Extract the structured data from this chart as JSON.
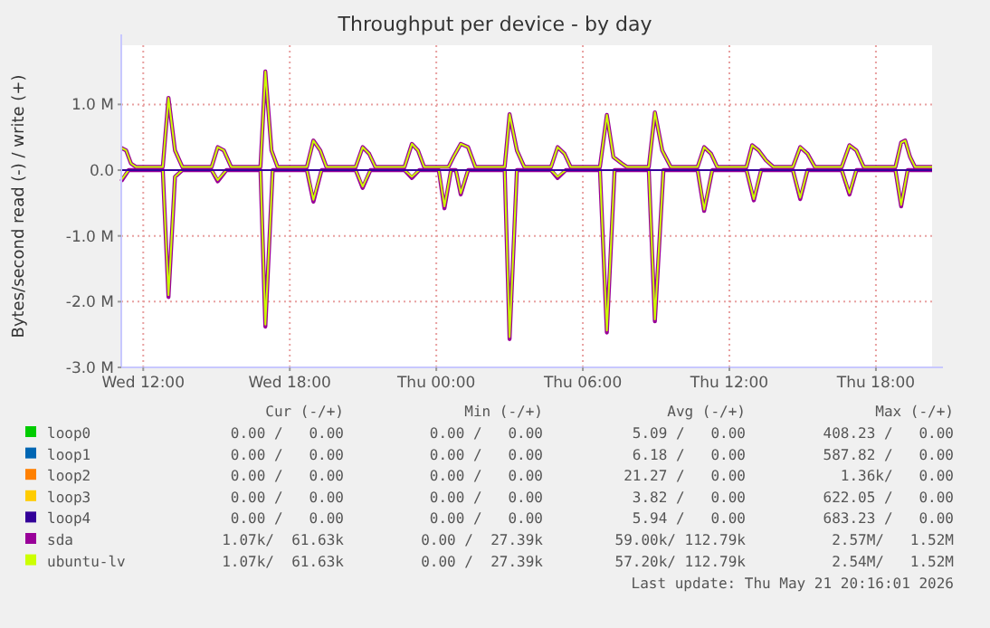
{
  "chart_data": {
    "type": "line",
    "title": "Throughput per device - by day",
    "ylabel": "Bytes/second read (-) / write (+)",
    "xlim": [
      "2026-05-20T11:06",
      "2026-05-21T20:18"
    ],
    "xticks": [
      {
        "value": "2026-05-20T12:00",
        "label": "Wed 12:00"
      },
      {
        "value": "2026-05-20T18:00",
        "label": "Wed 18:00"
      },
      {
        "value": "2026-05-21T00:00",
        "label": "Thu 00:00"
      },
      {
        "value": "2026-05-21T06:00",
        "label": "Thu 06:00"
      },
      {
        "value": "2026-05-21T12:00",
        "label": "Thu 12:00"
      },
      {
        "value": "2026-05-21T18:00",
        "label": "Thu 18:00"
      }
    ],
    "ylim": [
      -3.0,
      1.9
    ],
    "yticks": [
      {
        "value": 1,
        "label": "1.0 M"
      },
      {
        "value": 0,
        "label": "0.0"
      },
      {
        "value": -1,
        "label": "-1.0 M"
      },
      {
        "value": -2,
        "label": "-2.0 M"
      },
      {
        "value": -3,
        "label": "-3.0 M"
      }
    ],
    "grid": true,
    "legend": "bottom",
    "x": [
      "2026-05-20T11:06",
      "2026-05-20T11:18",
      "2026-05-20T11:30",
      "2026-05-20T11:42",
      "2026-05-20T12:48",
      "2026-05-20T13:02",
      "2026-05-20T13:18",
      "2026-05-20T13:36",
      "2026-05-20T14:48",
      "2026-05-20T15:03",
      "2026-05-20T15:18",
      "2026-05-20T15:36",
      "2026-05-20T16:48",
      "2026-05-20T17:00",
      "2026-05-20T17:15",
      "2026-05-20T17:30",
      "2026-05-20T18:42",
      "2026-05-20T18:58",
      "2026-05-20T19:15",
      "2026-05-20T19:30",
      "2026-05-20T20:42",
      "2026-05-20T20:59",
      "2026-05-20T21:15",
      "2026-05-20T21:30",
      "2026-05-20T22:42",
      "2026-05-20T23:00",
      "2026-05-20T23:15",
      "2026-05-20T23:30",
      "2026-05-21T00:30",
      "2026-05-21T00:42",
      "2026-05-21T01:00",
      "2026-05-21T01:18",
      "2026-05-21T01:36",
      "2026-05-21T02:48",
      "2026-05-21T03:00",
      "2026-05-21T03:18",
      "2026-05-21T03:36",
      "2026-05-21T04:42",
      "2026-05-21T04:58",
      "2026-05-21T05:15",
      "2026-05-21T05:30",
      "2026-05-21T06:42",
      "2026-05-21T06:59",
      "2026-05-21T07:15",
      "2026-05-21T07:36",
      "2026-05-21T07:48",
      "2026-05-21T08:42",
      "2026-05-21T08:57",
      "2026-05-21T09:15",
      "2026-05-21T09:36",
      "2026-05-21T10:42",
      "2026-05-21T10:58",
      "2026-05-21T11:15",
      "2026-05-21T11:30",
      "2026-05-21T12:42",
      "2026-05-21T12:56",
      "2026-05-21T13:12",
      "2026-05-21T13:30",
      "2026-05-21T13:48",
      "2026-05-21T14:36",
      "2026-05-21T14:54",
      "2026-05-21T15:12",
      "2026-05-21T15:30",
      "2026-05-21T16:36",
      "2026-05-21T16:55",
      "2026-05-21T17:12",
      "2026-05-21T17:30",
      "2026-05-21T18:48",
      "2026-05-21T19:02",
      "2026-05-21T19:12",
      "2026-05-21T19:24",
      "2026-05-21T19:36",
      "2026-05-21T20:18"
    ],
    "series": [
      {
        "name": "loop0",
        "color": "#00cc00",
        "values": [
          null,
          null,
          null,
          null,
          null,
          null,
          null,
          null,
          null,
          null,
          null,
          null,
          null,
          null,
          null,
          null,
          null,
          null,
          null,
          null,
          null,
          null,
          null,
          null,
          null,
          null,
          null,
          null,
          null,
          null,
          null,
          null,
          null,
          null,
          null,
          null,
          null,
          null,
          null,
          null,
          null,
          null,
          null,
          null,
          null,
          null,
          null,
          null,
          null,
          null,
          null,
          null,
          null,
          null,
          null,
          null,
          null,
          null,
          null,
          null,
          null,
          null,
          null,
          null,
          null,
          null,
          null,
          null,
          null,
          null,
          null,
          null,
          null
        ]
      },
      {
        "name": "loop1",
        "color": "#0066b3",
        "values": [
          null,
          null,
          null,
          null,
          null,
          null,
          null,
          null,
          null,
          null,
          null,
          null,
          null,
          null,
          null,
          null,
          null,
          null,
          null,
          null,
          null,
          null,
          null,
          null,
          null,
          null,
          null,
          null,
          null,
          null,
          null,
          null,
          null,
          null,
          null,
          null,
          null,
          null,
          null,
          null,
          null,
          null,
          null,
          null,
          null,
          null,
          null,
          null,
          null,
          null,
          null,
          null,
          null,
          null,
          null,
          null,
          null,
          null,
          null,
          null,
          null,
          null,
          null,
          null,
          null,
          null,
          null,
          null,
          null,
          null,
          null,
          null,
          null
        ]
      },
      {
        "name": "loop2",
        "color": "#ff8000",
        "values": [
          null,
          null,
          null,
          null,
          null,
          null,
          null,
          null,
          null,
          null,
          null,
          null,
          null,
          null,
          null,
          null,
          null,
          null,
          null,
          null,
          null,
          null,
          null,
          null,
          null,
          null,
          null,
          null,
          null,
          null,
          null,
          null,
          null,
          null,
          null,
          null,
          null,
          null,
          null,
          null,
          null,
          null,
          null,
          null,
          null,
          null,
          null,
          null,
          null,
          null,
          null,
          null,
          null,
          null,
          null,
          null,
          null,
          null,
          null,
          null,
          null,
          null,
          null,
          null,
          null,
          null,
          null,
          null,
          null,
          null,
          null,
          null,
          null
        ]
      },
      {
        "name": "loop3",
        "color": "#ffcc00",
        "values": [
          null,
          null,
          null,
          null,
          null,
          null,
          null,
          null,
          null,
          null,
          null,
          null,
          null,
          null,
          null,
          null,
          null,
          null,
          null,
          null,
          null,
          null,
          null,
          null,
          null,
          null,
          null,
          null,
          null,
          null,
          null,
          null,
          null,
          null,
          null,
          null,
          null,
          null,
          null,
          null,
          null,
          null,
          null,
          null,
          null,
          null,
          null,
          null,
          null,
          null,
          null,
          null,
          null,
          null,
          null,
          null,
          null,
          null,
          null,
          null,
          null,
          null,
          null,
          null,
          null,
          null,
          null,
          null,
          null,
          null,
          null,
          null,
          null
        ]
      },
      {
        "name": "loop4",
        "color": "#330099",
        "x": [
          "2026-05-20T11:06",
          "2026-05-21T20:18"
        ],
        "values": [
          0,
          0
        ]
      },
      {
        "name": "sda",
        "color": "#990099",
        "values": [
          0.34,
          0.3,
          0.1,
          0.05,
          0.05,
          1.1,
          0.3,
          0.05,
          0.05,
          0.35,
          0.3,
          0.05,
          0.05,
          1.5,
          0.3,
          0.05,
          0.05,
          0.45,
          0.3,
          0.05,
          0.05,
          0.35,
          0.25,
          0.05,
          0.05,
          0.4,
          0.3,
          0.05,
          0.05,
          0.2,
          0.4,
          0.35,
          0.05,
          0.05,
          0.85,
          0.3,
          0.05,
          0.05,
          0.35,
          0.25,
          0.05,
          0.05,
          0.84,
          0.2,
          0.1,
          0.05,
          0.05,
          0.88,
          0.3,
          0.05,
          0.05,
          0.35,
          0.25,
          0.05,
          0.05,
          0.38,
          0.3,
          0.15,
          0.05,
          0.05,
          0.35,
          0.25,
          0.05,
          0.05,
          0.38,
          0.3,
          0.05,
          0.05,
          0.42,
          0.45,
          0.2,
          0.05,
          0.05
        ]
      },
      {
        "color": "#990099",
        "x": [
          "2026-05-20T11:06",
          "2026-05-20T11:24",
          "2026-05-20T12:48",
          "2026-05-20T13:02",
          "2026-05-20T13:18",
          "2026-05-20T13:36",
          "2026-05-20T14:48",
          "2026-05-20T15:03",
          "2026-05-20T15:24",
          "2026-05-20T16:48",
          "2026-05-20T17:00",
          "2026-05-20T17:18",
          "2026-05-20T18:42",
          "2026-05-20T18:58",
          "2026-05-20T19:18",
          "2026-05-20T20:42",
          "2026-05-20T20:59",
          "2026-05-20T21:18",
          "2026-05-20T22:42",
          "2026-05-20T23:00",
          "2026-05-20T23:18",
          "2026-05-21T00:06",
          "2026-05-21T00:20",
          "2026-05-21T00:36",
          "2026-05-21T00:48",
          "2026-05-21T01:00",
          "2026-05-21T01:18",
          "2026-05-21T02:48",
          "2026-05-21T03:00",
          "2026-05-21T03:18",
          "2026-05-21T04:42",
          "2026-05-21T04:58",
          "2026-05-21T05:18",
          "2026-05-21T06:42",
          "2026-05-21T06:59",
          "2026-05-21T07:18",
          "2026-05-21T08:42",
          "2026-05-21T08:57",
          "2026-05-21T09:18",
          "2026-05-21T10:42",
          "2026-05-21T10:58",
          "2026-05-21T11:18",
          "2026-05-21T12:42",
          "2026-05-21T13:00",
          "2026-05-21T13:18",
          "2026-05-21T14:36",
          "2026-05-21T14:54",
          "2026-05-21T15:12",
          "2026-05-21T16:36",
          "2026-05-21T16:55",
          "2026-05-21T17:12",
          "2026-05-21T18:48",
          "2026-05-21T19:02",
          "2026-05-21T19:18",
          "2026-05-21T20:18"
        ],
        "values": [
          -0.17,
          0,
          0,
          -1.93,
          -0.1,
          0,
          0,
          -0.17,
          0,
          0,
          -2.38,
          0,
          0,
          -0.48,
          0,
          0,
          -0.27,
          0,
          0,
          -0.12,
          0,
          0,
          -0.58,
          0,
          0,
          -0.37,
          0,
          0,
          -2.57,
          0,
          0,
          -0.12,
          0,
          0,
          -2.47,
          0,
          0,
          -2.3,
          0,
          0,
          -0.62,
          0,
          0,
          -0.46,
          0,
          0,
          -0.44,
          0,
          0,
          -0.37,
          0,
          0,
          -0.55,
          0,
          0
        ]
      },
      {
        "name": "ubuntu-lv",
        "color": "#ccff00",
        "values": [
          0.34,
          0.3,
          0.1,
          0.05,
          0.05,
          1.1,
          0.3,
          0.05,
          0.05,
          0.35,
          0.3,
          0.05,
          0.05,
          1.5,
          0.3,
          0.05,
          0.05,
          0.45,
          0.3,
          0.05,
          0.05,
          0.35,
          0.25,
          0.05,
          0.05,
          0.4,
          0.3,
          0.05,
          0.05,
          0.2,
          0.4,
          0.35,
          0.05,
          0.05,
          0.85,
          0.3,
          0.05,
          0.05,
          0.35,
          0.25,
          0.05,
          0.05,
          0.84,
          0.2,
          0.1,
          0.05,
          0.05,
          0.88,
          0.3,
          0.05,
          0.05,
          0.35,
          0.25,
          0.05,
          0.05,
          0.38,
          0.3,
          0.15,
          0.05,
          0.05,
          0.35,
          0.25,
          0.05,
          0.05,
          0.38,
          0.3,
          0.05,
          0.05,
          0.42,
          0.45,
          0.2,
          0.05,
          0.05
        ]
      },
      {
        "color": "#ccff00",
        "x": [
          "2026-05-20T11:06",
          "2026-05-20T11:24",
          "2026-05-20T12:48",
          "2026-05-20T13:02",
          "2026-05-20T13:18",
          "2026-05-20T13:36",
          "2026-05-20T14:48",
          "2026-05-20T15:03",
          "2026-05-20T15:24",
          "2026-05-20T16:48",
          "2026-05-20T17:00",
          "2026-05-20T17:18",
          "2026-05-20T18:42",
          "2026-05-20T18:58",
          "2026-05-20T19:18",
          "2026-05-20T20:42",
          "2026-05-20T20:59",
          "2026-05-20T21:18",
          "2026-05-20T22:42",
          "2026-05-20T23:00",
          "2026-05-20T23:18",
          "2026-05-21T00:06",
          "2026-05-21T00:20",
          "2026-05-21T00:36",
          "2026-05-21T00:48",
          "2026-05-21T01:00",
          "2026-05-21T01:18",
          "2026-05-21T02:48",
          "2026-05-21T03:00",
          "2026-05-21T03:18",
          "2026-05-21T04:42",
          "2026-05-21T04:58",
          "2026-05-21T05:18",
          "2026-05-21T06:42",
          "2026-05-21T06:59",
          "2026-05-21T07:18",
          "2026-05-21T08:42",
          "2026-05-21T08:57",
          "2026-05-21T09:18",
          "2026-05-21T10:42",
          "2026-05-21T10:58",
          "2026-05-21T11:18",
          "2026-05-21T12:42",
          "2026-05-21T13:00",
          "2026-05-21T13:18",
          "2026-05-21T14:36",
          "2026-05-21T14:54",
          "2026-05-21T15:12",
          "2026-05-21T16:36",
          "2026-05-21T16:55",
          "2026-05-21T17:12",
          "2026-05-21T18:48",
          "2026-05-21T19:02",
          "2026-05-21T19:18",
          "2026-05-21T20:18"
        ],
        "values": [
          -0.15,
          0,
          0,
          -1.9,
          -0.1,
          0,
          0,
          -0.15,
          0,
          0,
          -2.35,
          0,
          0,
          -0.45,
          0,
          0,
          -0.25,
          0,
          0,
          -0.1,
          0,
          0,
          -0.55,
          0,
          0,
          -0.35,
          0,
          0,
          -2.54,
          0,
          0,
          -0.1,
          0,
          0,
          -2.44,
          0,
          0,
          -2.27,
          0,
          0,
          -0.6,
          0,
          0,
          -0.44,
          0,
          0,
          -0.42,
          0,
          0,
          -0.35,
          0,
          0,
          -0.53,
          0,
          0
        ]
      }
    ],
    "annotations": [
      "Cur (-/+)",
      "Min (-/+)",
      "Avg (-/+)",
      "Max (-/+)",
      "0.00 /   0.00",
      "0.00 /   0.00",
      "5.09 /   0.00",
      "408.23 /   0.00",
      "0.00 /   0.00",
      "0.00 /   0.00",
      "6.18 /   0.00",
      "587.82 /   0.00",
      "0.00 /   0.00",
      "0.00 /   0.00",
      "21.27 /   0.00",
      "1.36k/   0.00",
      "0.00 /   0.00",
      "0.00 /   0.00",
      "3.82 /   0.00",
      "622.05 /   0.00",
      "0.00 /   0.00",
      "0.00 /   0.00",
      "5.94 /   0.00",
      "683.23 /   0.00",
      "1.07k/  61.63k",
      "0.00 /  27.39k",
      "59.00k/ 112.79k",
      "2.57M/   1.52M",
      "1.07k/  61.63k",
      "0.00 /  27.39k",
      "57.20k/ 112.79k",
      "2.54M/   1.52M",
      "Last update: Thu May 21 20:16:01 2026"
    ]
  }
}
